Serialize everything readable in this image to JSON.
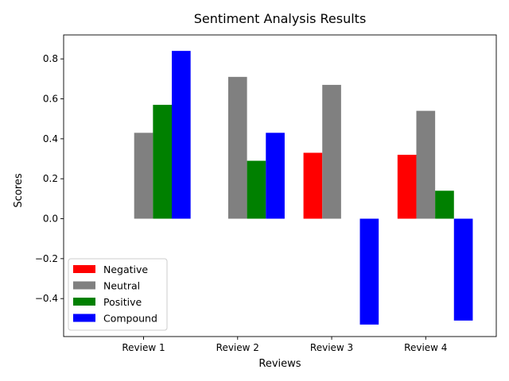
{
  "chart_data": {
    "type": "bar",
    "title": "Sentiment Analysis Results",
    "xlabel": "Reviews",
    "ylabel": "Scores",
    "categories": [
      "Review 1",
      "Review 2",
      "Review 3",
      "Review 4"
    ],
    "series": [
      {
        "name": "Negative",
        "color": "#ff0000",
        "values": [
          0.0,
          0.0,
          0.33,
          0.32
        ]
      },
      {
        "name": "Neutral",
        "color": "#808080",
        "values": [
          0.43,
          0.71,
          0.67,
          0.54
        ]
      },
      {
        "name": "Positive",
        "color": "#008000",
        "values": [
          0.57,
          0.29,
          0.0,
          0.14
        ]
      },
      {
        "name": "Compound",
        "color": "#0000ff",
        "values": [
          0.84,
          0.43,
          -0.53,
          -0.51
        ]
      }
    ],
    "ylim": [
      -0.59,
      0.92
    ],
    "yticks": [
      -0.4,
      -0.2,
      0.0,
      0.2,
      0.4,
      0.6,
      0.8
    ],
    "ytick_labels": [
      "−0.4",
      "−0.2",
      "0.0",
      "0.2",
      "0.4",
      "0.6",
      "0.8"
    ],
    "grid": false,
    "legend": "lower-left"
  }
}
